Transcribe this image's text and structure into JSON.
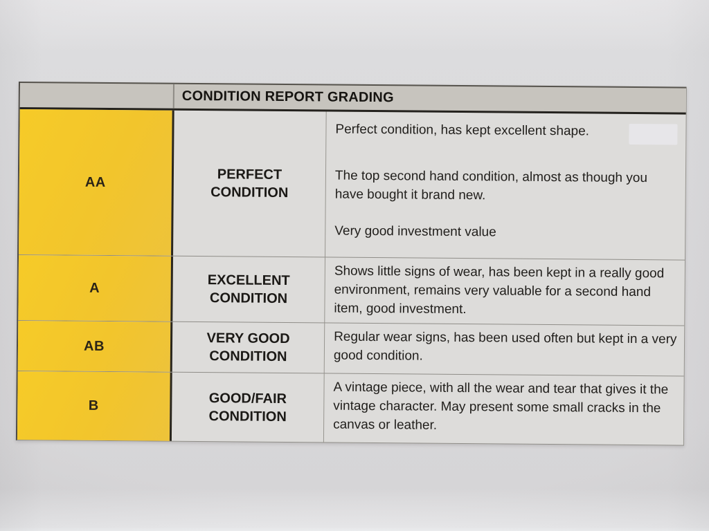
{
  "document": {
    "title": "CONDITION REPORT GRADING"
  },
  "colors": {
    "grade_column_yellow": "#f3c72a",
    "header_bg": "#c7c4be",
    "cell_bg": "#dddcda",
    "paper_bg": "#d7d6d8",
    "text": "#1e1c19"
  },
  "rows": [
    {
      "grade": "AA",
      "condition": "PERFECT CONDITION",
      "paragraphs": [
        "Perfect condition, has kept excellent shape.",
        "The top second hand condition, almost as though you have bought it brand new.",
        "Very good investment value"
      ]
    },
    {
      "grade": "A",
      "condition": "EXCELLENT CONDITION",
      "paragraphs": [
        "Shows little signs of wear, has been kept in a really good environment, remains very valuable for a second hand item, good investment."
      ]
    },
    {
      "grade": "AB",
      "condition": "VERY GOOD CONDITION",
      "paragraphs": [
        "Regular wear signs, has been used often but kept in a very good condition."
      ]
    },
    {
      "grade": "B",
      "condition": "GOOD/FAIR CONDITION",
      "paragraphs": [
        "A vintage piece, with all the wear and tear that gives it the vintage character. May present some small cracks in the canvas or leather."
      ]
    }
  ]
}
